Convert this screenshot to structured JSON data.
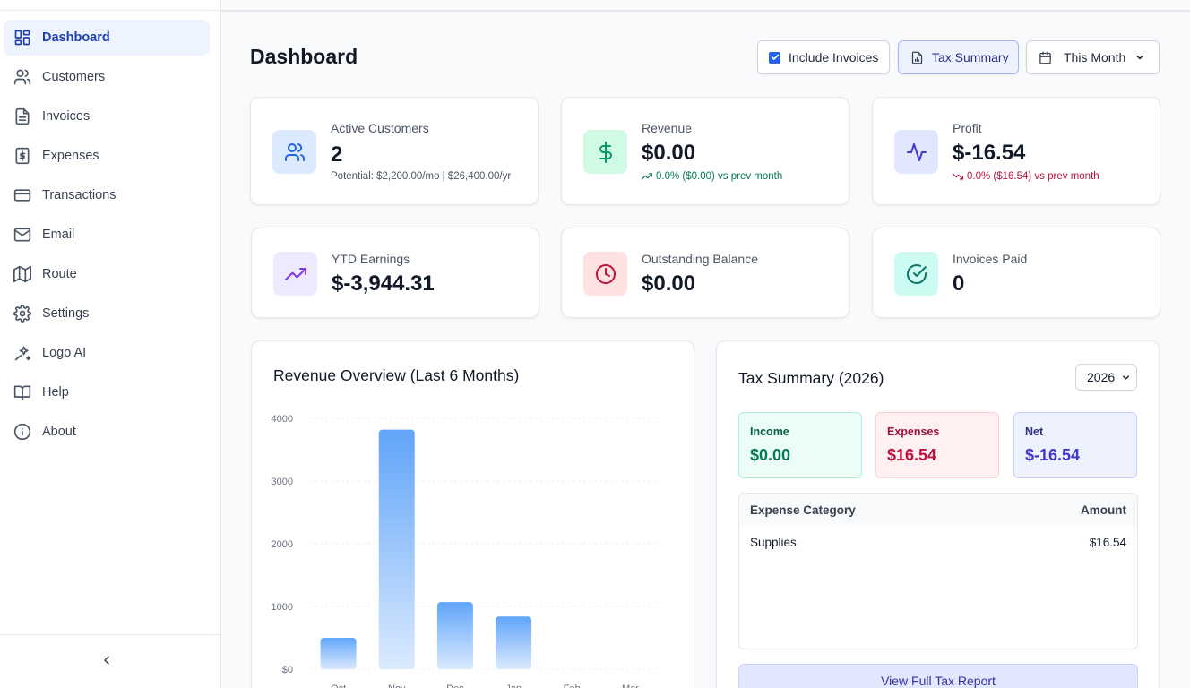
{
  "sidebar": {
    "items": [
      {
        "label": "Dashboard",
        "icon": "dashboard-icon"
      },
      {
        "label": "Customers",
        "icon": "users-icon"
      },
      {
        "label": "Invoices",
        "icon": "file-icon"
      },
      {
        "label": "Expenses",
        "icon": "dollar-file-icon"
      },
      {
        "label": "Transactions",
        "icon": "credit-card-icon"
      },
      {
        "label": "Email",
        "icon": "mail-icon"
      },
      {
        "label": "Route",
        "icon": "map-icon"
      },
      {
        "label": "Settings",
        "icon": "gear-icon"
      },
      {
        "label": "Logo AI",
        "icon": "sparkles-icon"
      },
      {
        "label": "Help",
        "icon": "book-icon"
      },
      {
        "label": "About",
        "icon": "info-icon"
      }
    ],
    "active_index": 0
  },
  "header": {
    "title": "Dashboard",
    "include_invoices_label": "Include Invoices",
    "include_invoices_checked": true,
    "tax_summary_label": "Tax Summary",
    "period_label": "This Month"
  },
  "stats": {
    "active_customers": {
      "label": "Active Customers",
      "value": "2",
      "sub": "Potential: $2,200.00/mo | $26,400.00/yr"
    },
    "revenue": {
      "label": "Revenue",
      "value": "$0.00",
      "sub": "0.0% ($0.00) vs prev month"
    },
    "profit": {
      "label": "Profit",
      "value": "$-16.54",
      "sub": "0.0% ($16.54) vs prev month"
    },
    "ytd": {
      "label": "YTD Earnings",
      "value": "$-3,944.31"
    },
    "outstanding": {
      "label": "Outstanding Balance",
      "value": "$0.00"
    },
    "invoices_paid": {
      "label": "Invoices Paid",
      "value": "0"
    }
  },
  "chart": {
    "title": "Revenue Overview (Last 6 Months)"
  },
  "chart_data": {
    "type": "bar",
    "title": "Revenue Overview (Last 6 Months)",
    "categories": [
      "Oct",
      "Nov",
      "Dec",
      "Jan",
      "Feb",
      "Mar"
    ],
    "values": [
      500,
      3820,
      1070,
      840,
      0,
      0
    ],
    "y_ticks": [
      "$0",
      "1000",
      "2000",
      "3000",
      "4000"
    ],
    "ylim": [
      0,
      4000
    ],
    "grid": true
  },
  "tax": {
    "title": "Tax Summary (2026)",
    "year": "2026",
    "income_label": "Income",
    "income_value": "$0.00",
    "expenses_label": "Expenses",
    "expenses_value": "$16.54",
    "net_label": "Net",
    "net_value": "$-16.54",
    "table_headers": [
      "Expense Category",
      "Amount"
    ],
    "rows": [
      {
        "category": "Supplies",
        "amount": "$16.54"
      }
    ],
    "report_label": "View Full Tax Report"
  },
  "colors": {
    "accent": "#2563eb",
    "positive": "#059669",
    "negative": "#be123c",
    "indigo": "#4338ca"
  }
}
